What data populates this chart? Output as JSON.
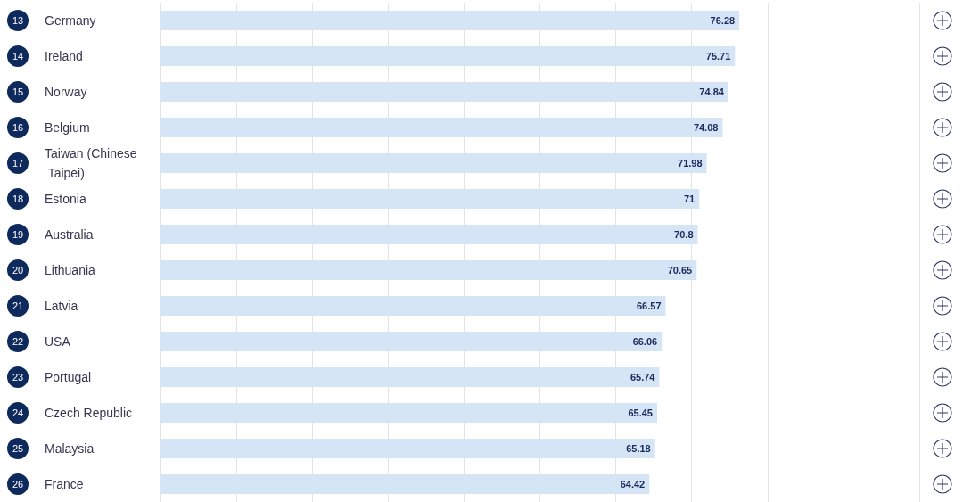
{
  "chart_data": {
    "type": "bar",
    "orientation": "horizontal",
    "categories": [
      "Germany",
      "Ireland",
      "Norway",
      "Belgium",
      "Taiwan (Chinese Taipei)",
      "Estonia",
      "Australia",
      "Lithuania",
      "Latvia",
      "USA",
      "Portugal",
      "Czech Republic",
      "Malaysia",
      "France"
    ],
    "values": [
      76.28,
      75.71,
      74.84,
      74.08,
      71.98,
      71,
      70.8,
      70.65,
      66.57,
      66.06,
      65.74,
      65.45,
      65.18,
      64.42
    ],
    "color": "#d5e5f6",
    "data_labels": true,
    "xlim": [
      0,
      100
    ],
    "xticks": [
      {
        "value": 0,
        "label": null
      },
      {
        "value": 10,
        "label": null
      },
      {
        "value": 20,
        "label": null
      },
      {
        "value": 30,
        "label": null
      },
      {
        "value": 40,
        "label": null
      },
      {
        "value": 50,
        "label": null
      },
      {
        "value": 60,
        "label": null
      },
      {
        "value": 70,
        "label": null
      },
      {
        "value": 80,
        "label": null
      },
      {
        "value": 90,
        "label": null
      },
      {
        "value": 100,
        "label": null
      }
    ],
    "grid": "x",
    "tick_labels": "y",
    "annotations": [
      "13",
      "14",
      "15",
      "16",
      "17",
      "18",
      "19",
      "20",
      "21",
      "22",
      "23",
      "24",
      "25",
      "26"
    ]
  }
}
